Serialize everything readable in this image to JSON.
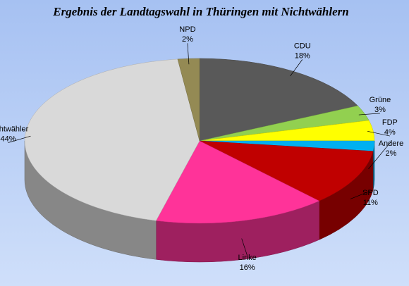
{
  "chart_data": {
    "type": "pie3d",
    "title": "Ergebnis der  Landtagswahl in Thüringen mit Nichtwählern",
    "categories": [
      "CDU",
      "Grüne",
      "FDP",
      "Andere",
      "SPD",
      "Linke",
      "Nichtwähler",
      "NPD"
    ],
    "values": [
      18,
      3,
      4,
      2,
      11,
      16,
      44,
      2
    ],
    "value_labels": [
      "18%",
      "3%",
      "4%",
      "2%",
      "11%",
      "16%",
      "44%",
      "2%"
    ],
    "colors": [
      "#595959",
      "#92d050",
      "#ffff00",
      "#00b0f0",
      "#c00000",
      "#ff3399",
      "#d9d9d9",
      "#948a54"
    ]
  }
}
